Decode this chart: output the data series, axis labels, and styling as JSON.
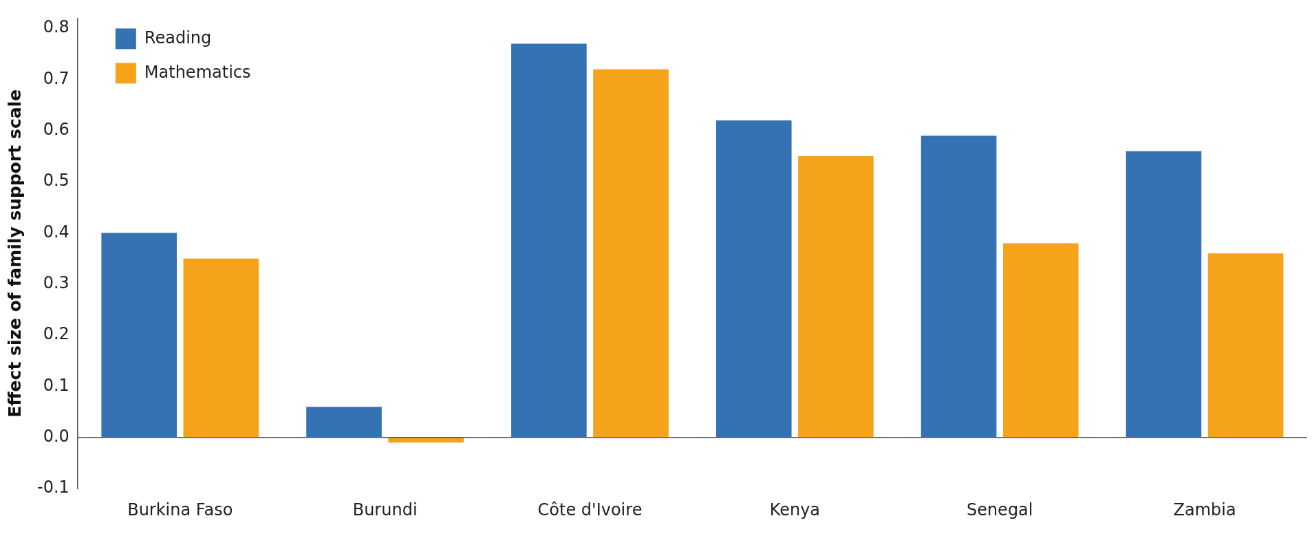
{
  "chart_data": {
    "type": "bar",
    "ylabel": "Effect size of family support scale",
    "categories": [
      "Burkina Faso",
      "Burundi",
      "Côte d'Ivoire",
      "Kenya",
      "Senegal",
      "Zambia"
    ],
    "series": [
      {
        "name": "Reading",
        "color": "#3572b4",
        "values": [
          0.4,
          0.06,
          0.77,
          0.62,
          0.59,
          0.56
        ]
      },
      {
        "name": "Mathematics",
        "color": "#f5a31a",
        "values": [
          0.35,
          -0.01,
          0.72,
          0.55,
          0.38,
          0.36
        ]
      }
    ],
    "ylim": [
      -0.1,
      0.82
    ],
    "yticks": [
      {
        "value": -0.1,
        "label": "-0.1"
      },
      {
        "value": 0,
        "label": "0.0"
      },
      {
        "value": 0.1,
        "label": "0.1"
      },
      {
        "value": 0.2,
        "label": "0.2"
      },
      {
        "value": 0.3,
        "label": "0.3"
      },
      {
        "value": 0.4,
        "label": "0.4"
      },
      {
        "value": 0.5,
        "label": "0.5"
      },
      {
        "value": 0.6,
        "label": "0.6"
      },
      {
        "value": 0.7,
        "label": "0.7"
      },
      {
        "value": 0.8,
        "label": "0.8"
      }
    ],
    "ref_lines": [
      {
        "axis": "y",
        "value": 0
      }
    ],
    "grid": false,
    "legend": "top left"
  }
}
